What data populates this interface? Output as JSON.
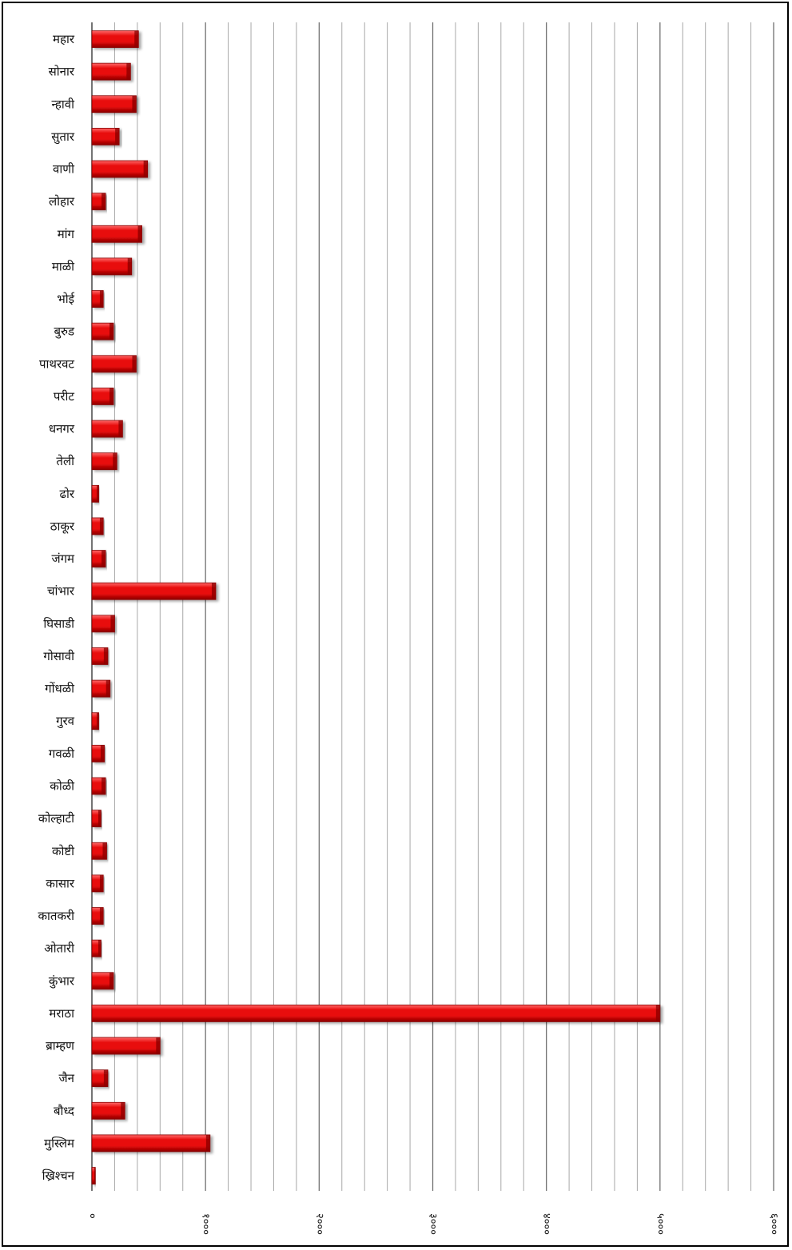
{
  "chart_data": {
    "type": "bar",
    "orientation": "horizontal",
    "title": "",
    "xlabel": "",
    "ylabel": "",
    "categories": [
      "महार",
      "सोनार",
      "न्हावी",
      "सुतार",
      "वाणी",
      "लोहार",
      "मांग",
      "माळी",
      "भोई",
      "बुरुड",
      "पाथरवट",
      "परीट",
      "धनगर",
      "तेली",
      "ढोर",
      "ठाकूर",
      "जंगम",
      "चांभार",
      "घिसाडी",
      "गोसावी",
      "गोंधळी",
      "गुरव",
      "गवळी",
      "कोळी",
      "कोल्हाटी",
      "कोष्टी",
      "कासार",
      "कातकरी",
      "ओतारी",
      "कुंभार",
      "मराठा",
      "ब्राम्हण",
      "जैन",
      "बौध्द",
      "मुस्लिम",
      "ख्रिश्चन"
    ],
    "values": [
      410,
      340,
      390,
      240,
      490,
      120,
      440,
      350,
      100,
      190,
      390,
      190,
      270,
      220,
      60,
      100,
      120,
      1090,
      200,
      140,
      160,
      60,
      110,
      120,
      80,
      130,
      100,
      100,
      80,
      190,
      5000,
      600,
      140,
      290,
      1040,
      30
    ],
    "xlim": [
      0,
      6000
    ],
    "x_ticks": [
      0,
      1000,
      2000,
      3000,
      4000,
      5000,
      6000
    ],
    "x_tick_labels": [
      "०",
      "१०००",
      "२०००",
      "३०००",
      "४०००",
      "५०००",
      "६०००"
    ],
    "minor_gridlines_per_major": 5,
    "grid": true,
    "legend": "none",
    "bar_color": "#e80a0a",
    "bar_dark_color": "#8a0000",
    "bar_light_color": "#ff6a6a",
    "gridline_color": "#a8a8a8",
    "major_gridline_color": "#707070"
  }
}
